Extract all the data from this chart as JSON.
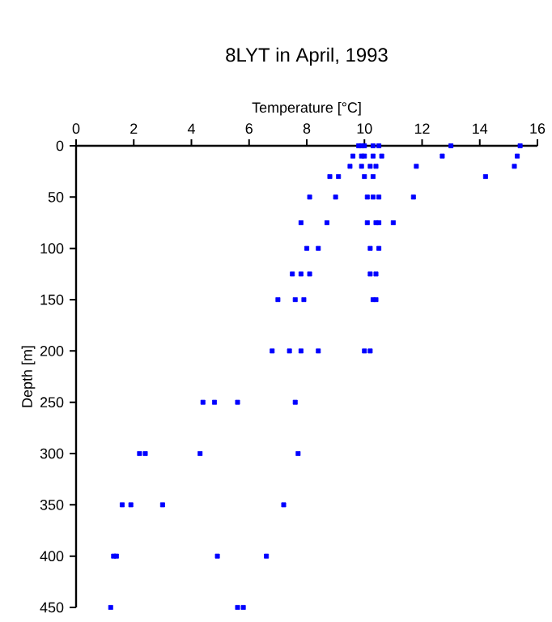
{
  "chart_data": {
    "type": "scatter",
    "title": "8LYT in April, 1993",
    "xlabel": "Temperature [°C]",
    "ylabel": "Depth [m]",
    "xlim": [
      0,
      16
    ],
    "xticks": [
      0,
      2,
      4,
      6,
      8,
      10,
      12,
      14,
      16
    ],
    "ylim": [
      450,
      0
    ],
    "yticks": [
      0,
      50,
      100,
      150,
      200,
      250,
      300,
      350,
      400,
      450
    ],
    "marker": "square",
    "series": [
      {
        "color": "#0000ff",
        "x": [
          9.8,
          9.9,
          10.0,
          10.3,
          10.5,
          13.0,
          15.4,
          9.6,
          9.9,
          10.0,
          10.3,
          10.6,
          12.7,
          15.3,
          9.5,
          9.9,
          10.2,
          10.4,
          11.8,
          15.2,
          8.8,
          9.1,
          10.0,
          10.3,
          14.2,
          8.1,
          9.0,
          10.1,
          10.3,
          10.5,
          11.7,
          7.8,
          8.7,
          10.1,
          10.4,
          10.5,
          11.0,
          8.0,
          8.4,
          10.2,
          10.5,
          7.5,
          7.8,
          8.1,
          10.2,
          10.4,
          7.0,
          7.6,
          7.9,
          10.3,
          10.4,
          6.8,
          7.4,
          7.8,
          8.4,
          10.0,
          10.2,
          4.4,
          4.8,
          5.6,
          7.6,
          2.2,
          2.4,
          4.3,
          7.7,
          1.6,
          1.9,
          3.0,
          7.2,
          1.3,
          1.4,
          4.9,
          6.6,
          1.2,
          5.6,
          5.8
        ],
        "values": [
          0,
          0,
          0,
          0,
          0,
          0,
          0,
          10,
          10,
          10,
          10,
          10,
          10,
          10,
          20,
          20,
          20,
          20,
          20,
          20,
          30,
          30,
          30,
          30,
          30,
          50,
          50,
          50,
          50,
          50,
          50,
          75,
          75,
          75,
          75,
          75,
          75,
          100,
          100,
          100,
          100,
          125,
          125,
          125,
          125,
          125,
          150,
          150,
          150,
          150,
          150,
          200,
          200,
          200,
          200,
          200,
          200,
          250,
          250,
          250,
          250,
          300,
          300,
          300,
          300,
          350,
          350,
          350,
          350,
          400,
          400,
          400,
          400,
          450,
          450,
          450
        ]
      }
    ]
  }
}
